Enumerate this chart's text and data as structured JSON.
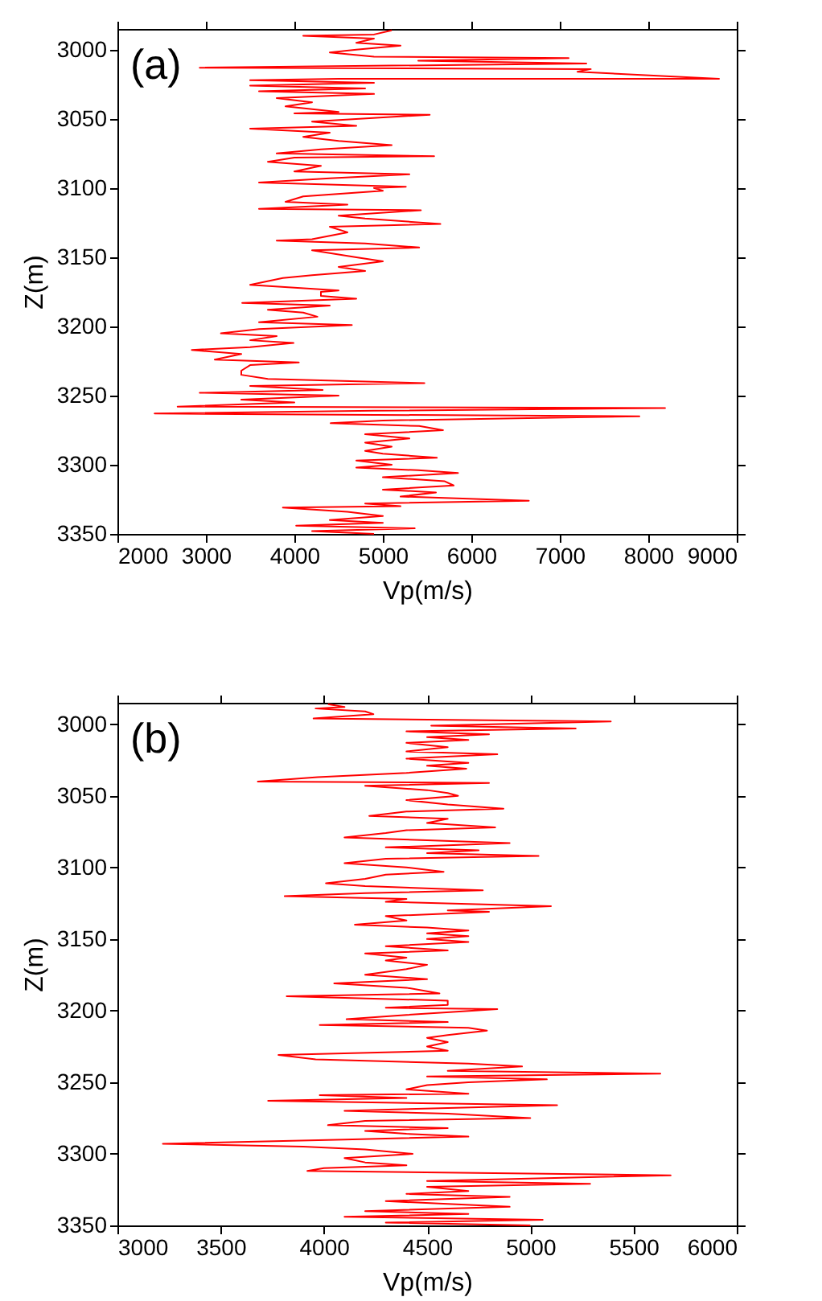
{
  "chart_data": [
    {
      "type": "line",
      "xlabel": "Vp(m/s)",
      "ylabel": "Z(m)",
      "annotations": [
        "(a)"
      ],
      "xlim": [
        2000,
        9000
      ],
      "xticks": [
        2000,
        3000,
        4000,
        5000,
        6000,
        7000,
        8000,
        9000
      ],
      "ylim": [
        3350,
        2985
      ],
      "yticks": [
        3000,
        3050,
        3100,
        3150,
        3200,
        3250,
        3300,
        3350
      ],
      "series": [
        {
          "color": "#ff0000",
          "x": [
            5100,
            4900,
            4100,
            4900,
            4700,
            5200,
            4700,
            4400,
            4900,
            7100,
            5400,
            7300,
            2930,
            7350,
            7200,
            8800,
            4500,
            3500,
            4900,
            3500,
            4800,
            3600,
            4900,
            3800,
            4200,
            3900,
            4500,
            4000,
            5530,
            4200,
            4700,
            3500,
            4400,
            4100,
            4500,
            5100,
            4300,
            3800,
            5580,
            4000,
            3700,
            4300,
            4000,
            5300,
            4400,
            3600,
            5260,
            4900,
            5000,
            4100,
            3900,
            4600,
            3600,
            5430,
            4500,
            4800,
            5650,
            4400,
            4600,
            4200,
            3800,
            4800,
            5410,
            4200,
            4700,
            5000,
            4500,
            4800,
            4200,
            3870,
            3500,
            4000,
            4500,
            4300,
            4300,
            4700,
            3410,
            4400,
            3700,
            4100,
            4260,
            3600,
            4650,
            3600,
            3170,
            3800,
            3500,
            3990,
            3500,
            2840,
            3400,
            3100,
            4050,
            3500,
            3400,
            3400,
            3700,
            5470,
            3500,
            4320,
            2930,
            4500,
            3400,
            4000,
            2680,
            8190,
            4900,
            2420,
            7900,
            6910,
            5000,
            4410,
            5410,
            5680,
            4800,
            5300,
            4800,
            5100,
            4800,
            5000,
            5610,
            4700,
            5100,
            4700,
            5400,
            5850,
            5000,
            5700,
            5800,
            5000,
            5600,
            5200,
            6650,
            4800,
            5200,
            3870,
            4600,
            5000,
            4400,
            5000,
            4020,
            5360,
            4200,
            4900
          ],
          "values": [
            2986,
            2989,
            2990,
            2992,
            2995,
            2997,
            3000,
            3002,
            3005,
            3006,
            3008,
            3010,
            3013,
            3014,
            3016,
            3021,
            3021,
            3022,
            3024,
            3026,
            3028,
            3030,
            3032,
            3035,
            3038,
            3041,
            3045,
            3046,
            3047,
            3052,
            3055,
            3057,
            3060,
            3063,
            3066,
            3069,
            3072,
            3075,
            3077,
            3078,
            3081,
            3084,
            3088,
            3090,
            3093,
            3096,
            3099,
            3100,
            3102,
            3106,
            3110,
            3112,
            3115,
            3116,
            3120,
            3122,
            3126,
            3128,
            3132,
            3137,
            3138,
            3140,
            3143,
            3145,
            3150,
            3153,
            3157,
            3160,
            3163,
            3165,
            3170,
            3172,
            3174,
            3175,
            3178,
            3180,
            3183,
            3185,
            3188,
            3190,
            3193,
            3197,
            3199,
            3202,
            3205,
            3207,
            3210,
            3212,
            3215,
            3217,
            3220,
            3224,
            3226,
            3228,
            3232,
            3235,
            3238,
            3241,
            3243,
            3246,
            3248,
            3250,
            3253,
            3255,
            3258,
            3259,
            3261,
            3263,
            3265,
            3266,
            3268,
            3270,
            3272,
            3275,
            3278,
            3281,
            3284,
            3287,
            3290,
            3292,
            3295,
            3297,
            3300,
            3302,
            3304,
            3306,
            3309,
            3312,
            3315,
            3318,
            3320,
            3323,
            3326,
            3328,
            3330,
            3331,
            3334,
            3337,
            3340,
            3342,
            3344,
            3346,
            3348,
            3350
          ]
        }
      ]
    },
    {
      "type": "line",
      "xlabel": "Vp(m/s)",
      "ylabel": "Z(m)",
      "annotations": [
        "(b)"
      ],
      "xlim": [
        3000,
        6000
      ],
      "xticks": [
        3000,
        3500,
        4000,
        4500,
        5000,
        5500,
        6000
      ],
      "ylim": [
        3350,
        2985
      ],
      "yticks": [
        3000,
        3050,
        3100,
        3150,
        3200,
        3250,
        3300,
        3350
      ],
      "series": [
        {
          "color": "#ff0000",
          "x": [
            4020,
            4100,
            3960,
            4200,
            4240,
            3950,
            5390,
            4520,
            5220,
            4400,
            4800,
            4500,
            4700,
            4400,
            4600,
            4400,
            4840,
            4400,
            4700,
            4500,
            4690,
            4400,
            3970,
            3680,
            4800,
            4200,
            4500,
            4600,
            4650,
            4400,
            4600,
            4870,
            4400,
            4220,
            4600,
            4500,
            4830,
            4400,
            4300,
            4100,
            4500,
            4900,
            4300,
            4750,
            4500,
            5040,
            4300,
            4100,
            4400,
            4580,
            4300,
            4200,
            4010,
            4200,
            4770,
            4200,
            3810,
            4400,
            4300,
            5100,
            4600,
            4800,
            4300,
            4400,
            4150,
            4500,
            4700,
            4500,
            4700,
            4500,
            4700,
            4300,
            4600,
            4200,
            4400,
            4300,
            4500,
            4400,
            4200,
            4500,
            4050,
            4400,
            4560,
            3820,
            4600,
            4600,
            4300,
            4840,
            4400,
            4110,
            4600,
            3980,
            4700,
            4790,
            4600,
            4500,
            4600,
            4500,
            4600,
            3780,
            3960,
            4700,
            4960,
            4600,
            5630,
            4500,
            5080,
            4700,
            4500,
            4400,
            4700,
            3980,
            4400,
            3730,
            5130,
            4600,
            4100,
            4600,
            5000,
            4200,
            4020,
            4600,
            4200,
            4400,
            4700,
            4100,
            3220,
            3900,
            4200,
            4430,
            4100,
            4200,
            4400,
            4000,
            3920,
            5680,
            4500,
            5290,
            4500,
            4700,
            4400,
            4900,
            4300,
            4600,
            4900,
            4200,
            4700,
            4100,
            5060,
            4300,
            5000
          ],
          "values": [
            2986,
            2988,
            2989,
            2991,
            2993,
            2996,
            2998,
            3001,
            3003,
            3005,
            3007,
            3009,
            3011,
            3013,
            3016,
            3019,
            3021,
            3024,
            3027,
            3029,
            3031,
            3034,
            3037,
            3040,
            3041,
            3043,
            3046,
            3048,
            3050,
            3053,
            3056,
            3059,
            3061,
            3064,
            3066,
            3069,
            3072,
            3074,
            3076,
            3079,
            3081,
            3083,
            3086,
            3088,
            3090,
            3092,
            3094,
            3097,
            3100,
            3103,
            3105,
            3108,
            3111,
            3113,
            3116,
            3118,
            3120,
            3122,
            3124,
            3127,
            3130,
            3131,
            3134,
            3137,
            3140,
            3142,
            3144,
            3146,
            3148,
            3150,
            3152,
            3155,
            3158,
            3160,
            3163,
            3165,
            3168,
            3171,
            3175,
            3178,
            3181,
            3184,
            3188,
            3190,
            3193,
            3196,
            3198,
            3199,
            3203,
            3206,
            3208,
            3210,
            3212,
            3214,
            3217,
            3219,
            3222,
            3225,
            3228,
            3231,
            3234,
            3237,
            3239,
            3242,
            3244,
            3246,
            3248,
            3250,
            3252,
            3255,
            3258,
            3259,
            3261,
            3263,
            3266,
            3268,
            3270,
            3272,
            3275,
            3277,
            3280,
            3282,
            3284,
            3286,
            3288,
            3290,
            3293,
            3295,
            3297,
            3300,
            3303,
            3306,
            3308,
            3310,
            3312,
            3315,
            3319,
            3321,
            3323,
            3326,
            3328,
            3330,
            3333,
            3335,
            3337,
            3340,
            3342,
            3344,
            3346,
            3348,
            3350
          ]
        }
      ]
    }
  ]
}
